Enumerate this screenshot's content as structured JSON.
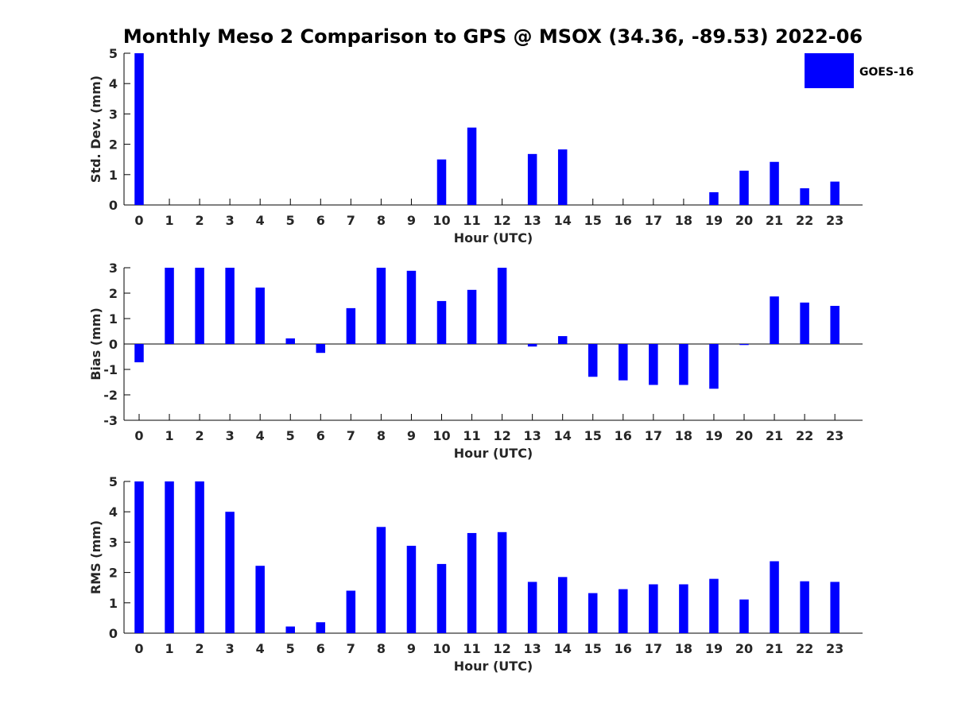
{
  "figure": {
    "title": "Monthly Meso 2 Comparison to GPS @ MSOX (34.36, -89.53) 2022-06",
    "legend": {
      "label": "GOES-16",
      "color": "#0000ff",
      "position": "top-right"
    }
  },
  "chart_data": [
    {
      "type": "bar",
      "xlabel": "Hour (UTC)",
      "ylabel": "Std. Dev. (mm)",
      "ylim": [
        0,
        5
      ],
      "yticks": [
        0,
        1,
        2,
        3,
        4,
        5
      ],
      "categories": [
        "0",
        "1",
        "2",
        "3",
        "4",
        "5",
        "6",
        "7",
        "8",
        "9",
        "10",
        "11",
        "12",
        "13",
        "14",
        "15",
        "16",
        "17",
        "18",
        "19",
        "20",
        "21",
        "22",
        "23"
      ],
      "series": [
        {
          "name": "GOES-16",
          "color": "#0000ff",
          "values": [
            5.0,
            0,
            0,
            0,
            0,
            0,
            0,
            0,
            0,
            0,
            1.5,
            2.55,
            0,
            1.68,
            1.83,
            0,
            0,
            0,
            0,
            0.42,
            1.13,
            1.42,
            0.55,
            0.77
          ]
        }
      ]
    },
    {
      "type": "bar",
      "xlabel": "Hour (UTC)",
      "ylabel": "Bias (mm)",
      "ylim": [
        -3,
        3
      ],
      "yticks": [
        -3,
        -2,
        -1,
        0,
        1,
        2,
        3
      ],
      "categories": [
        "0",
        "1",
        "2",
        "3",
        "4",
        "5",
        "6",
        "7",
        "8",
        "9",
        "10",
        "11",
        "12",
        "13",
        "14",
        "15",
        "16",
        "17",
        "18",
        "19",
        "20",
        "21",
        "22",
        "23"
      ],
      "series": [
        {
          "name": "GOES-16",
          "color": "#0000ff",
          "values": [
            -0.72,
            3.0,
            3.0,
            3.0,
            2.22,
            0.22,
            -0.35,
            1.41,
            3.0,
            2.88,
            1.69,
            2.13,
            3.0,
            -0.1,
            0.31,
            -1.29,
            -1.43,
            -1.61,
            -1.61,
            -1.76,
            -0.04,
            1.87,
            1.63,
            1.5
          ]
        }
      ]
    },
    {
      "type": "bar",
      "xlabel": "Hour (UTC)",
      "ylabel": "RMS (mm)",
      "ylim": [
        0,
        5
      ],
      "yticks": [
        0,
        1,
        2,
        3,
        4,
        5
      ],
      "categories": [
        "0",
        "1",
        "2",
        "3",
        "4",
        "5",
        "6",
        "7",
        "8",
        "9",
        "10",
        "11",
        "12",
        "13",
        "14",
        "15",
        "16",
        "17",
        "18",
        "19",
        "20",
        "21",
        "22",
        "23"
      ],
      "series": [
        {
          "name": "GOES-16",
          "color": "#0000ff",
          "values": [
            5.0,
            5.0,
            5.0,
            4.0,
            2.22,
            0.22,
            0.36,
            1.4,
            3.5,
            2.88,
            2.28,
            3.3,
            3.33,
            1.69,
            1.85,
            1.32,
            1.45,
            1.61,
            1.61,
            1.79,
            1.11,
            2.37,
            1.71,
            1.69
          ]
        }
      ]
    }
  ]
}
